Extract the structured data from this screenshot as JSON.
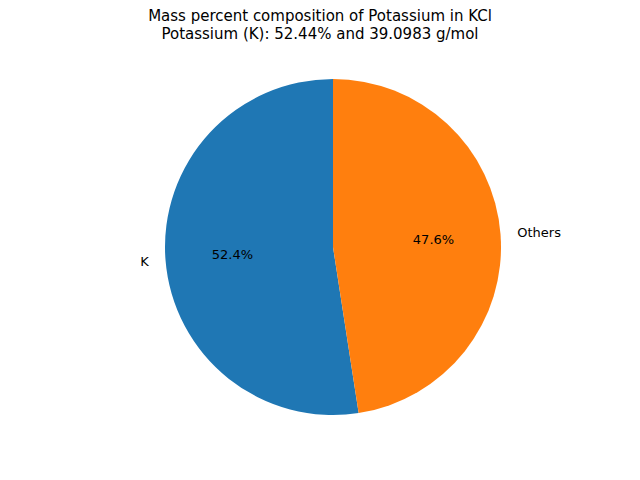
{
  "chart_data": {
    "type": "pie",
    "title": "Mass percent composition of Potassium in KCl",
    "subtitle": "Potassium (K): 52.44% and 39.0983 g/mol",
    "categories": [
      "K",
      "Others"
    ],
    "values": [
      52.44,
      47.56
    ],
    "value_labels": [
      "52.4%",
      "47.6%"
    ],
    "colors": [
      "#1f77b4",
      "#ff7f0e"
    ],
    "data_labels": true
  }
}
